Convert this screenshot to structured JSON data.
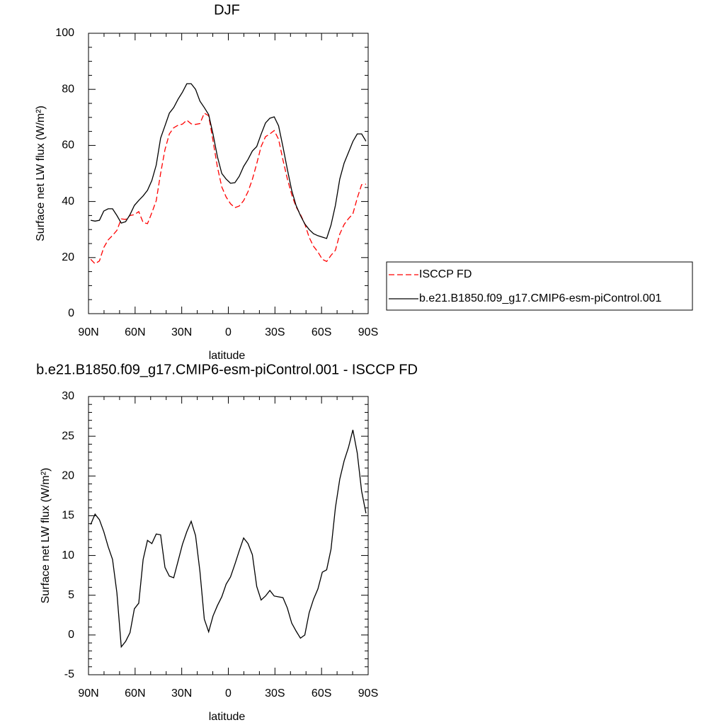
{
  "chart_data": [
    {
      "type": "line",
      "title": "DJF",
      "x_label": "latitude",
      "y_label": "Surface net LW flux (W/m²)",
      "x": [
        88.59,
        85.78,
        82.97,
        80.16,
        77.34,
        74.53,
        71.72,
        68.91,
        66.09,
        63.28,
        60.47,
        57.66,
        54.84,
        52.03,
        49.22,
        46.41,
        43.59,
        40.78,
        37.97,
        35.16,
        32.34,
        29.53,
        26.72,
        23.91,
        21.09,
        18.28,
        15.47,
        12.66,
        9.84,
        7.03,
        4.22,
        1.41,
        -1.41,
        -4.22,
        -7.03,
        -9.84,
        -12.66,
        -15.47,
        -18.28,
        -21.09,
        -23.91,
        -26.72,
        -29.53,
        -32.34,
        -35.16,
        -37.97,
        -40.78,
        -43.59,
        -46.41,
        -49.22,
        -52.03,
        -54.84,
        -57.66,
        -60.47,
        -63.28,
        -66.09,
        -68.91,
        -71.72,
        -74.53,
        -77.34,
        -80.16,
        -82.97,
        -85.78,
        -88.59
      ],
      "series": [
        {
          "name": "ISCCP FD",
          "color": "#ff0000",
          "line_style": "dashed",
          "values": [
            19.4,
            17.8,
            18.8,
            23.6,
            26.3,
            27.9,
            29.7,
            33.8,
            33.6,
            35.0,
            35.3,
            36.4,
            32.5,
            32.1,
            36.0,
            40.3,
            50.0,
            58.5,
            64.1,
            66.3,
            67.2,
            67.6,
            69.0,
            67.7,
            67.5,
            67.8,
            71.5,
            70.6,
            61.6,
            52.3,
            45.2,
            41.6,
            39.2,
            37.8,
            38.4,
            40.3,
            43.5,
            47.9,
            53.5,
            59.6,
            63.1,
            64.1,
            65.3,
            62.2,
            54.8,
            48.1,
            42.5,
            38.1,
            35.4,
            32.0,
            27.2,
            24.0,
            22.0,
            19.4,
            18.6,
            20.8,
            22.6,
            28.4,
            31.8,
            33.9,
            35.6,
            41.2,
            46.0,
            46.2
          ]
        },
        {
          "name": "b.e21.B1850.f09_g17.CMIP6-esm-piControl.001",
          "color": "#000000",
          "line_style": "solid",
          "values": [
            33.3,
            33.0,
            33.3,
            36.6,
            37.4,
            37.4,
            35.0,
            32.3,
            32.8,
            35.3,
            38.6,
            40.4,
            42.0,
            44.0,
            47.5,
            53.0,
            62.6,
            67.0,
            71.5,
            73.5,
            76.5,
            79.0,
            82.0,
            82.0,
            80.0,
            75.8,
            73.5,
            71.0,
            64.0,
            56.0,
            50.0,
            48.0,
            46.5,
            46.7,
            49.0,
            52.5,
            55.0,
            58.0,
            59.6,
            64.0,
            68.0,
            69.7,
            70.2,
            67.0,
            59.5,
            51.5,
            44.0,
            38.6,
            35.0,
            32.0,
            30.0,
            28.5,
            27.8,
            27.3,
            26.8,
            31.6,
            38.6,
            48.0,
            53.7,
            57.5,
            61.4,
            64.1,
            64.1,
            61.5
          ]
        }
      ],
      "xlim": [
        90,
        -90
      ],
      "xticks": [
        {
          "value": 90,
          "label": "90N"
        },
        {
          "value": 60,
          "label": "60N"
        },
        {
          "value": 30,
          "label": "30N"
        },
        0,
        {
          "value": -30,
          "label": "30S"
        },
        {
          "value": -60,
          "label": "60S"
        },
        {
          "value": -90,
          "label": "90S"
        }
      ],
      "ylim": [
        0,
        100
      ],
      "yticks": [
        0,
        20,
        40,
        60,
        80,
        100
      ],
      "legend": "right"
    },
    {
      "type": "line",
      "title": "b.e21.B1850.f09_g17.CMIP6-esm-piControl.001 - ISCCP FD",
      "x_label": "latitude",
      "y_label": "Surface net LW flux (W/m²)",
      "x": [
        88.59,
        85.78,
        82.97,
        80.16,
        77.34,
        74.53,
        71.72,
        68.91,
        66.09,
        63.28,
        60.47,
        57.66,
        54.84,
        52.03,
        49.22,
        46.41,
        43.59,
        40.78,
        37.97,
        35.16,
        32.34,
        29.53,
        26.72,
        23.91,
        21.09,
        18.28,
        15.47,
        12.66,
        9.84,
        7.03,
        4.22,
        1.41,
        -1.41,
        -4.22,
        -7.03,
        -9.84,
        -12.66,
        -15.47,
        -18.28,
        -21.09,
        -23.91,
        -26.72,
        -29.53,
        -32.34,
        -35.16,
        -37.97,
        -40.78,
        -43.59,
        -46.41,
        -49.22,
        -52.03,
        -54.84,
        -57.66,
        -60.47,
        -63.28,
        -66.09,
        -68.91,
        -71.72,
        -74.53,
        -77.34,
        -80.16,
        -82.97,
        -85.78,
        -88.59
      ],
      "values": [
        13.9,
        15.2,
        14.5,
        13.0,
        11.1,
        9.5,
        5.3,
        -1.5,
        -0.8,
        0.3,
        3.3,
        4.0,
        9.5,
        11.9,
        11.5,
        12.7,
        12.6,
        8.5,
        7.4,
        7.2,
        9.3,
        11.4,
        13.0,
        14.3,
        12.5,
        8.0,
        2.0,
        0.4,
        2.4,
        3.7,
        4.8,
        6.4,
        7.3,
        8.9,
        10.6,
        12.2,
        11.5,
        10.1,
        6.1,
        4.4,
        4.9,
        5.6,
        4.9,
        4.8,
        4.7,
        3.4,
        1.5,
        0.5,
        -0.4,
        0.0,
        2.8,
        4.5,
        5.8,
        7.9,
        8.2,
        10.8,
        16.0,
        19.6,
        21.9,
        23.6,
        25.8,
        22.9,
        18.1,
        15.3
      ],
      "color": "#000000",
      "line_style": "solid",
      "xlim": [
        90,
        -90
      ],
      "xticks": [
        {
          "value": 90,
          "label": "90N"
        },
        {
          "value": 60,
          "label": "60N"
        },
        {
          "value": 30,
          "label": "30N"
        },
        0,
        {
          "value": -30,
          "label": "30S"
        },
        {
          "value": -60,
          "label": "60S"
        },
        {
          "value": -90,
          "label": "90S"
        }
      ],
      "ylim": [
        -5,
        30
      ],
      "yticks": [
        -5,
        0,
        5,
        10,
        15,
        20,
        25,
        30
      ]
    }
  ]
}
